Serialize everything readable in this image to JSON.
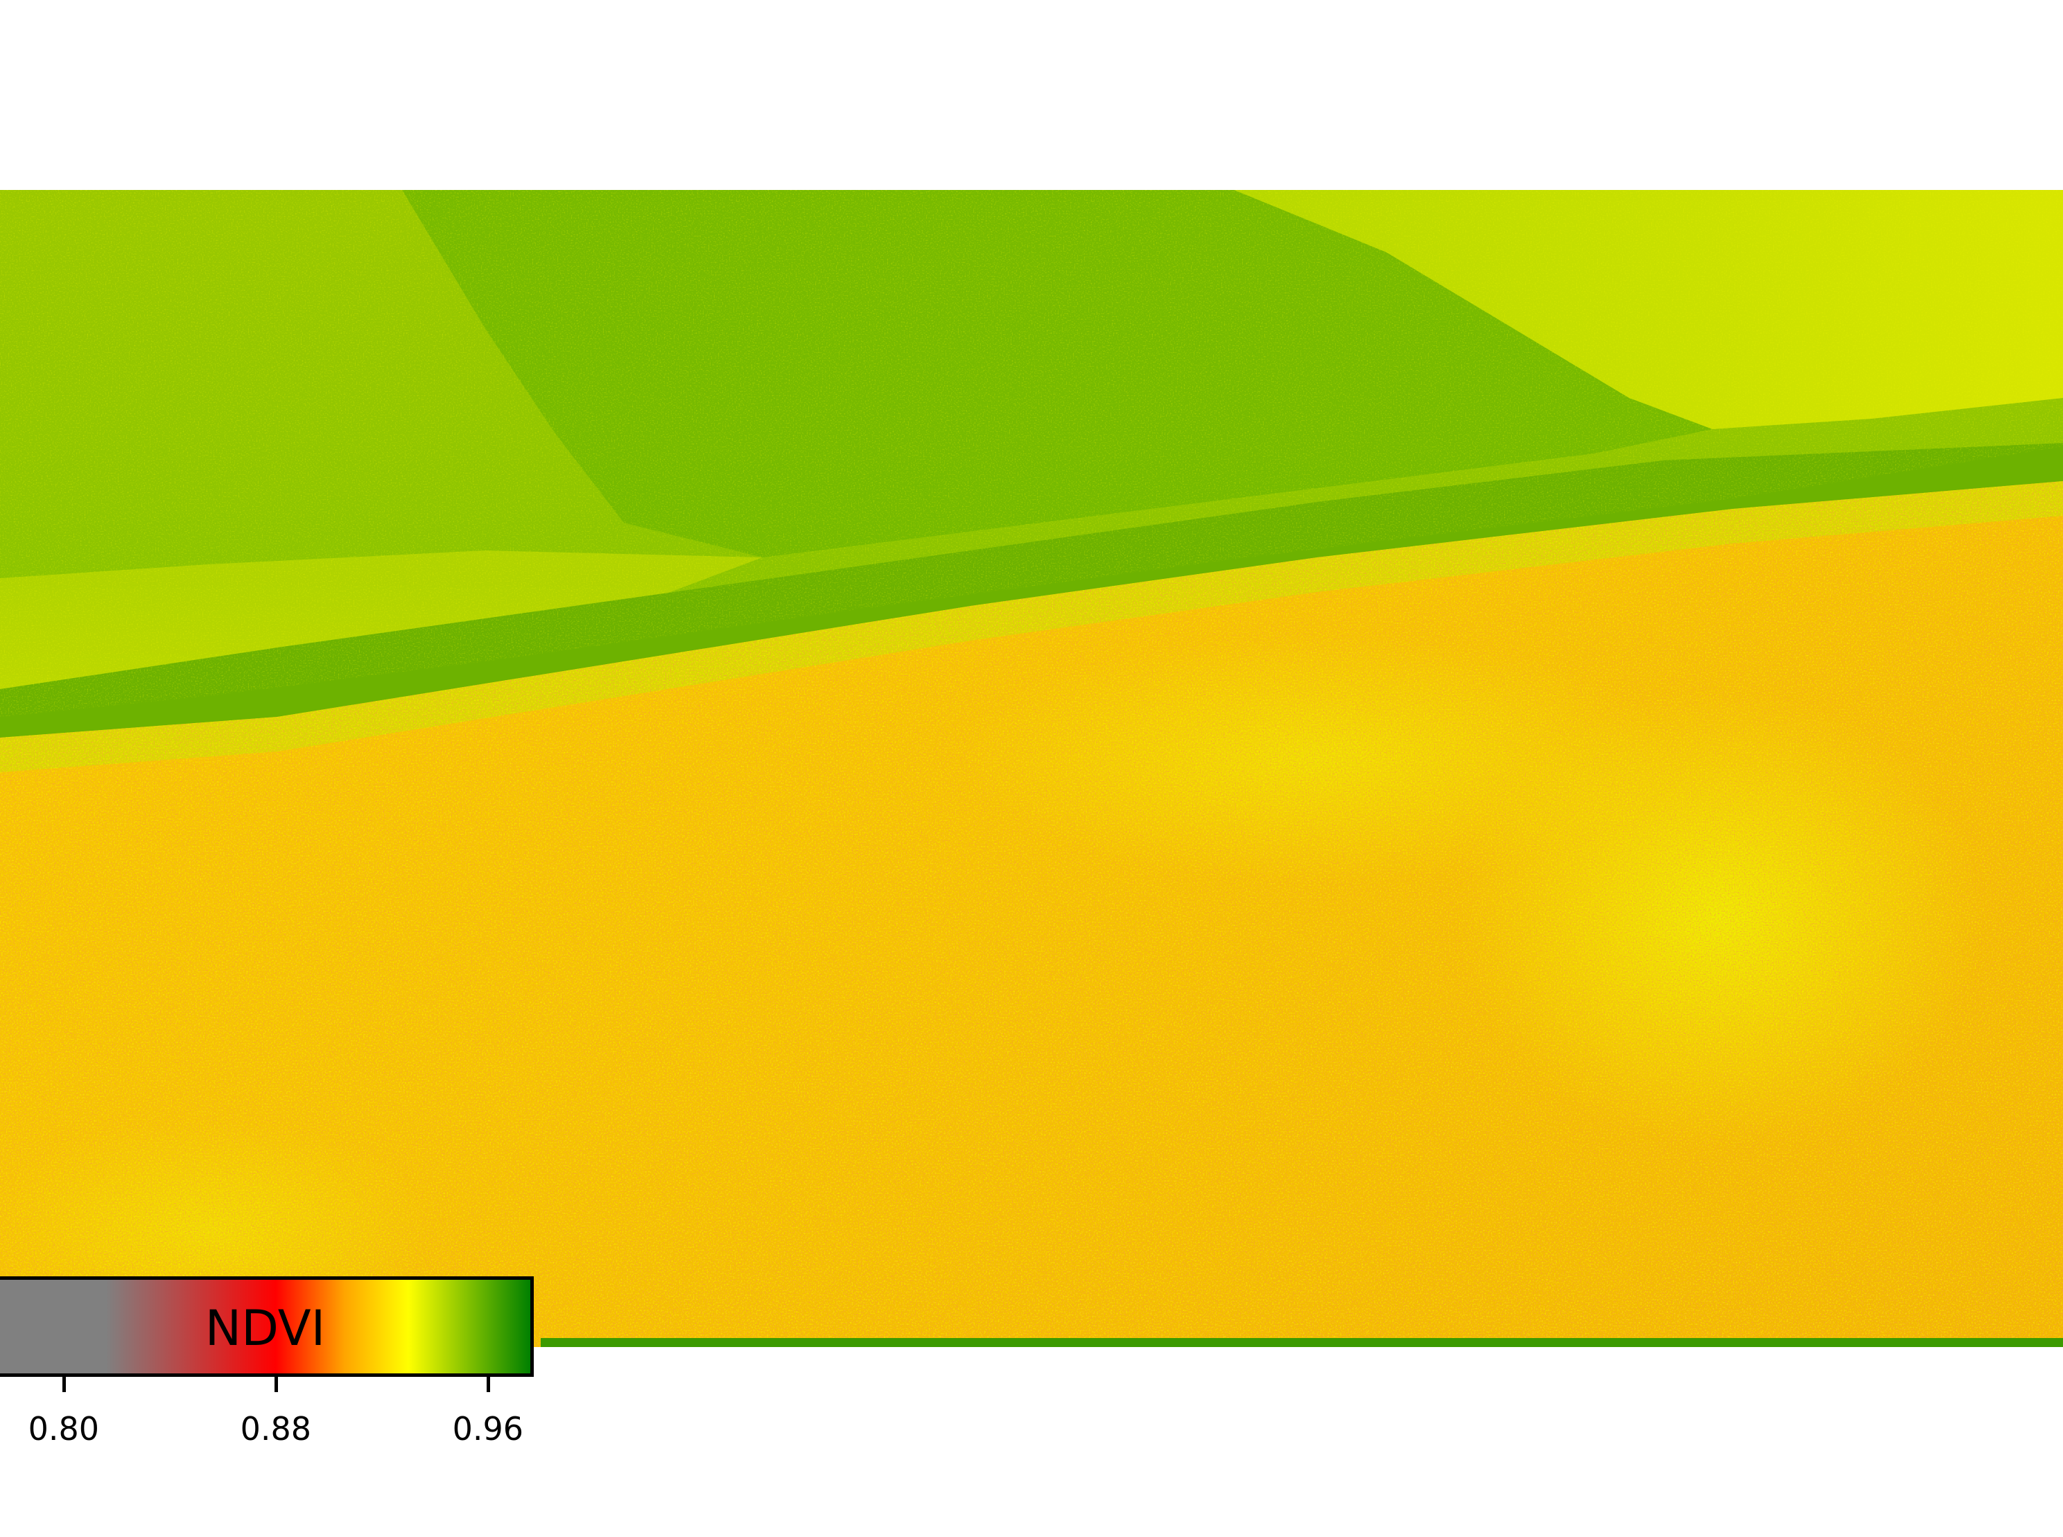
{
  "map": {
    "layer": "NDVI",
    "colormap": {
      "stops": [
        {
          "value": 0.776,
          "color": "#808080"
        },
        {
          "value": 0.816,
          "color": "#808080"
        },
        {
          "value": 0.88,
          "color": "#ff0000"
        },
        {
          "value": 0.906,
          "color": "#ffa500"
        },
        {
          "value": 0.93,
          "color": "#ffff00"
        },
        {
          "value": 0.976,
          "color": "#008000"
        }
      ]
    },
    "palette": {
      "deep_green": "#5fa800",
      "mid_green": "#7dbd00",
      "yellow_green": "#b8d800",
      "yellow": "#f3ee00",
      "orange": "#f6b400",
      "red_orange": "#ec6a10"
    }
  },
  "colorbar": {
    "label": "NDVI",
    "range": [
      0.776,
      0.976
    ],
    "ticks": [
      {
        "value": 0.8,
        "label": "0.80"
      },
      {
        "value": 0.88,
        "label": "0.88"
      },
      {
        "value": 0.96,
        "label": "0.96"
      }
    ]
  }
}
